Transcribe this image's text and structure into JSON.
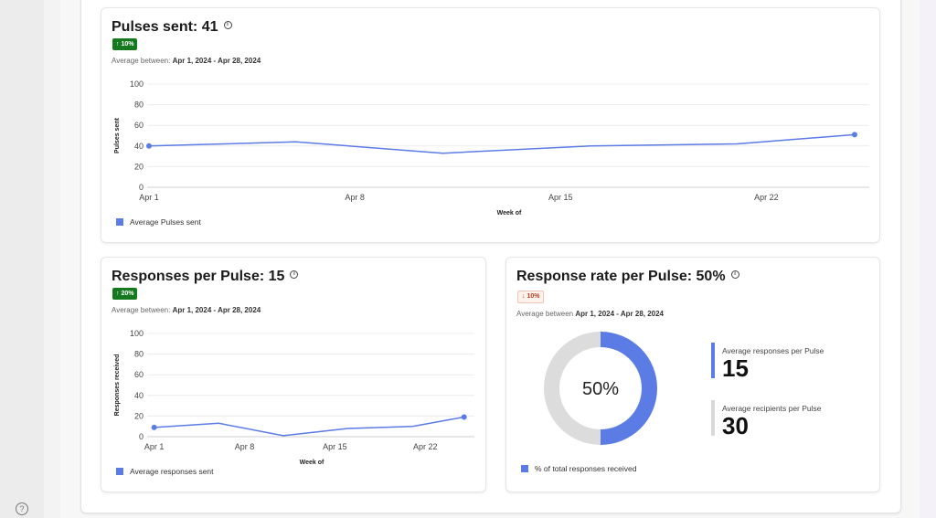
{
  "theme": {
    "accent": "#5b7be5",
    "badge_up": "#157a1f",
    "badge_down": "#b5411e",
    "donut_rest": "#dcdcdc",
    "stat_bar_2": "#d9d9d9"
  },
  "help": {
    "icon": "question-circle-icon",
    "label": "?"
  },
  "pulses": {
    "title": "Pulses sent: 41",
    "info": "i",
    "badge": "↑ 10%",
    "avg_prefix": "Average between:",
    "avg_range": "Apr 1, 2024 - Apr 28, 2024",
    "legend": "Average Pulses sent",
    "chart_data": {
      "type": "line",
      "ylabel": "Pulses sent",
      "xlabel": "Week of",
      "ylim": [
        0,
        100
      ],
      "yticks": [
        0,
        20,
        40,
        60,
        80,
        100
      ],
      "x_ticks": [
        "Apr 1",
        "Apr 8",
        "Apr 15",
        "Apr 22"
      ],
      "x_tick_days": [
        1,
        8,
        15,
        22
      ],
      "x_range_days": [
        1,
        25.5
      ],
      "series": [
        {
          "name": "Average Pulses sent",
          "x_days": [
            1,
            6,
            11,
            16,
            21,
            25
          ],
          "values": [
            40,
            44,
            33,
            40,
            42,
            51
          ]
        }
      ],
      "grid": true
    }
  },
  "responses": {
    "title": "Responses per Pulse: 15",
    "info": "i",
    "badge": "↑ 20%",
    "avg_prefix": "Average between:",
    "avg_range": "Apr 1, 2024 - Apr 28, 2024",
    "legend": "Average responses sent",
    "chart_data": {
      "type": "line",
      "ylabel": "Responses received",
      "xlabel": "Week of",
      "ylim": [
        0,
        100
      ],
      "yticks": [
        0,
        20,
        40,
        60,
        80,
        100
      ],
      "x_ticks": [
        "Apr 1",
        "Apr 8",
        "Apr 15",
        "Apr 22"
      ],
      "x_tick_days": [
        1,
        8,
        15,
        22
      ],
      "x_range_days": [
        0.6,
        25.8
      ],
      "series": [
        {
          "name": "Average responses sent",
          "x_days": [
            1,
            6,
            11,
            16,
            21,
            25
          ],
          "values": [
            9,
            13,
            1,
            8,
            10,
            19
          ]
        }
      ],
      "grid": true
    }
  },
  "rate": {
    "title": "Response rate per Pulse: 50%",
    "info": "i",
    "badge": "↓ 10%",
    "avg_prefix": "Average between",
    "avg_range": "Apr 1, 2024 - Apr 28, 2024",
    "legend": "% of total responses received",
    "center_label": "50%",
    "chart_data": {
      "type": "pie",
      "values": [
        50,
        50
      ]
    },
    "stats": [
      {
        "label": "Average responses per Pulse",
        "value": "15"
      },
      {
        "label": "Average recipients per Pulse",
        "value": "30"
      }
    ]
  }
}
